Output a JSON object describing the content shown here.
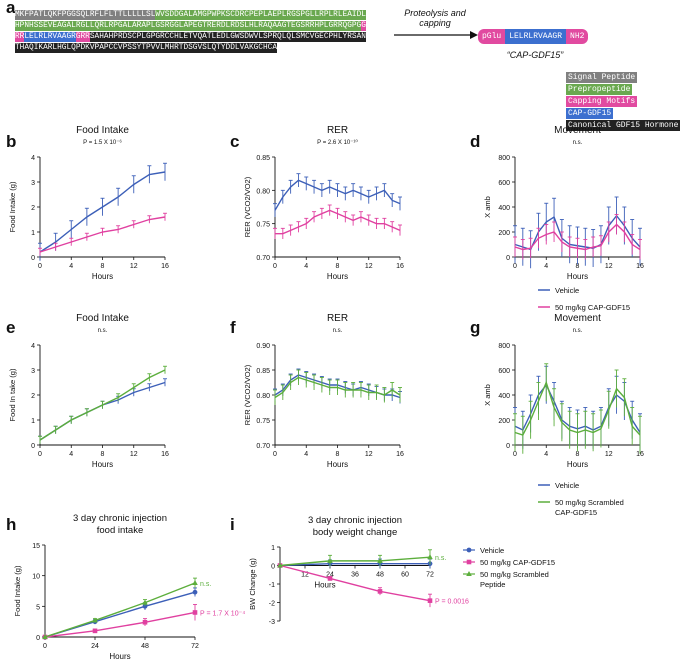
{
  "panel_a": {
    "letter": "a",
    "sequence": [
      {
        "cls": "s-sig",
        "text": "MKFPATLQKFPGGSQLRFLFLTTLLLLLSL"
      },
      {
        "cls": "s-pre",
        "text": "WVSDDGALAMGPWPKSCDRCPEPLAEPLRGSPGLLRPLRLEAIDLHPNHSSEVEAGALRGLLQRLRPGALARAPLGSRGGLAPEGTRERDLRDSLHLRAQAAGTEGSRRHPLGRRQGPG"
      },
      {
        "cls": "s-cap",
        "text": "GRR"
      },
      {
        "cls": "s-cgd",
        "text": "LELRLRVAAGR"
      },
      {
        "cls": "s-cap",
        "text": "GRR"
      },
      {
        "cls": "s-can",
        "text": "SAHAHPRDSCPLGPGRCCHLETVQATLEDLGWSDWVLSPRQLQLSMCVGECPHLYRSANTHAQIKARLHGLQPDKVPAPCCVPSSYTPVVLMHRTDSGVSLQTYDDLVAKGCHCA"
      }
    ],
    "arrow_label": "Proteolysis and capping",
    "peptide": {
      "left": "pGlu",
      "core": "LELRLRVAAGR",
      "right": "NH2"
    },
    "peptide_name": "“CAP-GDF15”",
    "key": [
      {
        "label": "Signal Peptide",
        "color": "#808080"
      },
      {
        "label": "Prepropeptide",
        "color": "#6aa84f"
      },
      {
        "label": "Capping Motifs",
        "color": "#e14aa0"
      },
      {
        "label": "CAP-GDF15",
        "color": "#3c6fcf"
      },
      {
        "label": "Canonical GDF15 Hormone",
        "color": "#222222"
      }
    ]
  },
  "colors": {
    "blue": "#3c5fb8",
    "magenta": "#e040a0",
    "green": "#5cae3c"
  },
  "legend_de": {
    "series1": "Vehicle",
    "series2": "50 mg/kg CAP-GDF15"
  },
  "legend_fg": {
    "series1": "Vehicle",
    "series2": "50 mg/kg Scrambled CAP-GDF15"
  },
  "legend_hi": [
    {
      "name": "Vehicle",
      "color": "#3c5fb8"
    },
    {
      "name": "50 mg/kg CAP-GDF15",
      "color": "#e040a0"
    },
    {
      "name": "50 mg/kg Scrambled Peptide",
      "color": "#5cae3c"
    }
  ],
  "chart_data": [
    {
      "id": "b",
      "type": "line",
      "title": "Food Intake",
      "subtitle": "P = 1.5 X 10⁻⁶",
      "xlabel": "Hours",
      "ylabel": "Food Intake (g)",
      "xlim": [
        0,
        16
      ],
      "ylim": [
        0,
        4
      ],
      "xticks": [
        0,
        4,
        8,
        12,
        16
      ],
      "yticks": [
        0,
        1,
        2,
        3,
        4
      ],
      "series": [
        {
          "name": "Vehicle",
          "x": [
            0,
            2,
            4,
            6,
            8,
            10,
            12,
            14,
            16
          ],
          "values": [
            0.2,
            0.6,
            1.1,
            1.6,
            2.0,
            2.4,
            2.9,
            3.3,
            3.4
          ],
          "err": 0.35
        },
        {
          "name": "50 mg/kg CAP-GDF15",
          "x": [
            0,
            2,
            4,
            6,
            8,
            10,
            12,
            14,
            16
          ],
          "values": [
            0.2,
            0.4,
            0.6,
            0.8,
            1.0,
            1.1,
            1.3,
            1.5,
            1.6
          ],
          "err": 0.15
        }
      ]
    },
    {
      "id": "c",
      "type": "line",
      "title": "RER",
      "subtitle": "P = 2.6 X 10⁻¹⁰",
      "xlabel": "Hours",
      "ylabel": "RER (VCO2/VO2)",
      "xlim": [
        0,
        16
      ],
      "ylim": [
        0.7,
        0.85
      ],
      "xticks": [
        0,
        4,
        8,
        12,
        16
      ],
      "yticks": [
        0.7,
        0.75,
        0.8,
        0.85
      ],
      "series": [
        {
          "name": "Vehicle",
          "x": [
            0,
            1,
            2,
            3,
            4,
            5,
            6,
            7,
            8,
            9,
            10,
            11,
            12,
            13,
            14,
            15,
            16
          ],
          "values": [
            0.77,
            0.79,
            0.805,
            0.815,
            0.81,
            0.805,
            0.8,
            0.805,
            0.8,
            0.795,
            0.8,
            0.795,
            0.79,
            0.795,
            0.8,
            0.785,
            0.78
          ],
          "err": 0.01
        },
        {
          "name": "50 mg/kg CAP-GDF15",
          "x": [
            0,
            1,
            2,
            3,
            4,
            5,
            6,
            7,
            8,
            9,
            10,
            11,
            12,
            13,
            14,
            15,
            16
          ],
          "values": [
            0.735,
            0.735,
            0.74,
            0.745,
            0.75,
            0.76,
            0.765,
            0.77,
            0.765,
            0.76,
            0.755,
            0.76,
            0.755,
            0.75,
            0.75,
            0.745,
            0.74
          ],
          "err": 0.008
        }
      ]
    },
    {
      "id": "d",
      "type": "line",
      "title": "Movement",
      "subtitle": "n.s.",
      "xlabel": "Hours",
      "ylabel": "X amb",
      "xlim": [
        0,
        16
      ],
      "ylim": [
        0,
        800
      ],
      "xticks": [
        0,
        4,
        8,
        12,
        16
      ],
      "yticks": [
        0,
        200,
        400,
        600,
        800
      ],
      "series": [
        {
          "name": "Vehicle",
          "x": [
            0,
            1,
            2,
            3,
            4,
            5,
            6,
            7,
            8,
            9,
            10,
            11,
            12,
            13,
            14,
            15,
            16
          ],
          "values": [
            100,
            80,
            60,
            200,
            280,
            320,
            150,
            100,
            90,
            80,
            70,
            100,
            250,
            330,
            250,
            150,
            80
          ],
          "err": 150
        },
        {
          "name": "50 mg/kg CAP-GDF15",
          "x": [
            0,
            1,
            2,
            3,
            4,
            5,
            6,
            7,
            8,
            9,
            10,
            11,
            12,
            13,
            14,
            15,
            16
          ],
          "values": [
            80,
            60,
            70,
            150,
            180,
            200,
            120,
            80,
            70,
            60,
            80,
            90,
            200,
            260,
            200,
            100,
            60
          ],
          "err": 80
        }
      ]
    },
    {
      "id": "e",
      "type": "line",
      "title": "Food Intake",
      "subtitle": "n.s.",
      "xlabel": "Hours",
      "ylabel": "Food In take (g)",
      "xlim": [
        0,
        16
      ],
      "ylim": [
        0,
        4
      ],
      "xticks": [
        0,
        4,
        8,
        12,
        16
      ],
      "yticks": [
        0,
        1,
        2,
        3,
        4
      ],
      "series": [
        {
          "name": "Vehicle",
          "x": [
            0,
            2,
            4,
            6,
            8,
            10,
            12,
            14,
            16
          ],
          "values": [
            0.2,
            0.6,
            1.0,
            1.3,
            1.6,
            1.8,
            2.1,
            2.3,
            2.5
          ],
          "err": 0.15
        },
        {
          "name": "50 mg/kg Scrambled CAP-GDF15",
          "x": [
            0,
            2,
            4,
            6,
            8,
            10,
            12,
            14,
            16
          ],
          "values": [
            0.2,
            0.6,
            1.0,
            1.3,
            1.6,
            1.9,
            2.3,
            2.7,
            3.0
          ],
          "err": 0.15
        }
      ]
    },
    {
      "id": "f",
      "type": "line",
      "title": "RER",
      "subtitle": "n.s.",
      "xlabel": "Hours",
      "ylabel": "RER (VCO2/VO2)",
      "xlim": [
        0,
        16
      ],
      "ylim": [
        0.7,
        0.9
      ],
      "xticks": [
        0,
        4,
        8,
        12,
        16
      ],
      "yticks": [
        0.7,
        0.75,
        0.8,
        0.85,
        0.9
      ],
      "series": [
        {
          "name": "Vehicle",
          "x": [
            0,
            1,
            2,
            3,
            4,
            5,
            6,
            7,
            8,
            9,
            10,
            11,
            12,
            13,
            14,
            15,
            16
          ],
          "values": [
            0.8,
            0.81,
            0.83,
            0.84,
            0.835,
            0.83,
            0.825,
            0.82,
            0.82,
            0.815,
            0.81,
            0.815,
            0.81,
            0.805,
            0.8,
            0.8,
            0.795
          ],
          "err": 0.012
        },
        {
          "name": "50 mg/kg Scrambled CAP-GDF15",
          "x": [
            0,
            1,
            2,
            3,
            4,
            5,
            6,
            7,
            8,
            9,
            10,
            11,
            12,
            13,
            14,
            15,
            16
          ],
          "values": [
            0.795,
            0.805,
            0.825,
            0.835,
            0.83,
            0.825,
            0.82,
            0.815,
            0.815,
            0.81,
            0.81,
            0.81,
            0.805,
            0.805,
            0.8,
            0.81,
            0.8
          ],
          "err": 0.015
        }
      ]
    },
    {
      "id": "g",
      "type": "line",
      "title": "Movement",
      "subtitle": "n.s.",
      "xlabel": "Hours",
      "ylabel": "X amb",
      "xlim": [
        0,
        16
      ],
      "ylim": [
        0,
        800
      ],
      "xticks": [
        0,
        4,
        8,
        12,
        16
      ],
      "yticks": [
        0,
        200,
        400,
        600,
        800
      ],
      "series": [
        {
          "name": "Vehicle",
          "x": [
            0,
            1,
            2,
            3,
            4,
            5,
            6,
            7,
            8,
            9,
            10,
            11,
            12,
            13,
            14,
            15,
            16
          ],
          "values": [
            150,
            120,
            250,
            400,
            480,
            350,
            200,
            150,
            130,
            150,
            120,
            150,
            300,
            400,
            350,
            200,
            100
          ],
          "err": 150
        },
        {
          "name": "50 mg/kg Scrambled CAP-GDF15",
          "x": [
            0,
            1,
            2,
            3,
            4,
            5,
            6,
            7,
            8,
            9,
            10,
            11,
            12,
            13,
            14,
            15,
            16
          ],
          "values": [
            100,
            80,
            200,
            350,
            500,
            300,
            180,
            120,
            100,
            120,
            100,
            130,
            280,
            450,
            380,
            150,
            80
          ],
          "err": 150
        }
      ]
    },
    {
      "id": "h",
      "type": "line",
      "title": "3 day chronic injection",
      "subtitle": "food intake",
      "xlabel": "Hours",
      "ylabel": "Food Intake (g)",
      "xlim": [
        0,
        72
      ],
      "ylim": [
        0,
        15
      ],
      "xticks": [
        0,
        24,
        48,
        72
      ],
      "yticks": [
        0,
        5,
        10,
        15
      ],
      "annotations": [
        {
          "text": "n.s.",
          "series": 2
        },
        {
          "text": "P = 1.7 X 10⁻⁴",
          "series": 1
        }
      ],
      "series": [
        {
          "name": "Vehicle",
          "x": [
            0,
            24,
            48,
            72
          ],
          "values": [
            0,
            2.5,
            5.0,
            7.3
          ],
          "err": [
            0,
            0.4,
            0.6,
            0.7
          ]
        },
        {
          "name": "50 mg/kg CAP-GDF15",
          "x": [
            0,
            24,
            48,
            72
          ],
          "values": [
            0,
            1.0,
            2.4,
            4.0
          ],
          "err": [
            0,
            0.3,
            0.6,
            1.3
          ]
        },
        {
          "name": "50 mg/kg Scrambled Peptide",
          "x": [
            0,
            24,
            48,
            72
          ],
          "values": [
            0,
            2.7,
            5.6,
            8.8
          ],
          "err": [
            0,
            0.3,
            0.5,
            0.8
          ]
        }
      ]
    },
    {
      "id": "i",
      "type": "line",
      "title": "3 day chronic injection",
      "subtitle": "body weight change",
      "xlabel": "Hours",
      "ylabel": "BW Change (g)",
      "xlim": [
        0,
        72
      ],
      "ylim": [
        -3,
        1
      ],
      "xticks": [
        12,
        24,
        36,
        48,
        60,
        72
      ],
      "yticks": [
        -3,
        -2,
        -1,
        0,
        1
      ],
      "annotations": [
        {
          "text": "n.s.",
          "series": 2
        },
        {
          "text": "P = 0.0016",
          "series": 1
        }
      ],
      "series": [
        {
          "name": "Vehicle",
          "x": [
            0,
            24,
            48,
            72
          ],
          "values": [
            0,
            0.1,
            0.1,
            0.1
          ],
          "err": [
            0,
            0.2,
            0.25,
            0.25
          ]
        },
        {
          "name": "50 mg/kg CAP-GDF15",
          "x": [
            0,
            24,
            48,
            72
          ],
          "values": [
            0,
            -0.7,
            -1.4,
            -1.9
          ],
          "err": [
            0,
            0.1,
            0.2,
            0.35
          ]
        },
        {
          "name": "50 mg/kg Scrambled Peptide",
          "x": [
            0,
            24,
            48,
            72
          ],
          "values": [
            0,
            0.25,
            0.25,
            0.45
          ],
          "err": [
            0,
            0.3,
            0.3,
            0.4
          ]
        }
      ]
    }
  ]
}
